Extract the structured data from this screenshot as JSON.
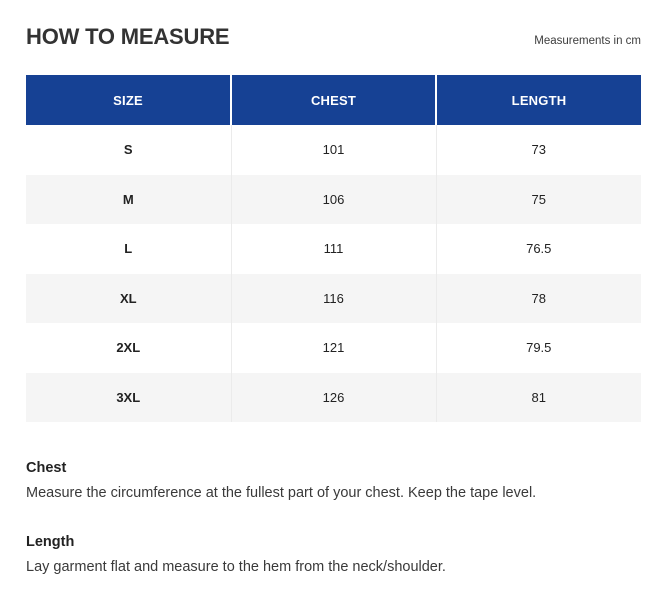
{
  "page": {
    "title": "HOW TO MEASURE",
    "unit_note": "Measurements in cm"
  },
  "size_table": {
    "columns": [
      {
        "label": "SIZE"
      },
      {
        "label": "CHEST"
      },
      {
        "label": "LENGTH"
      }
    ],
    "rows": [
      {
        "size": "S",
        "chest": "101",
        "length": "73"
      },
      {
        "size": "M",
        "chest": "106",
        "length": "75"
      },
      {
        "size": "L",
        "chest": "111",
        "length": "76.5"
      },
      {
        "size": "XL",
        "chest": "116",
        "length": "78"
      },
      {
        "size": "2XL",
        "chest": "121",
        "length": "79.5"
      },
      {
        "size": "3XL",
        "chest": "126",
        "length": "81"
      }
    ]
  },
  "guides": [
    {
      "heading": "Chest",
      "text": "Measure the circumference at the fullest part of your chest. Keep the tape level."
    },
    {
      "heading": "Length",
      "text": "Lay garment flat and measure to the hem from the neck/shoulder."
    }
  ],
  "colors": {
    "table_header_bg": "#164194",
    "table_header_text": "#ffffff",
    "alt_row_bg": "#f5f5f5",
    "body_text": "#333333"
  }
}
